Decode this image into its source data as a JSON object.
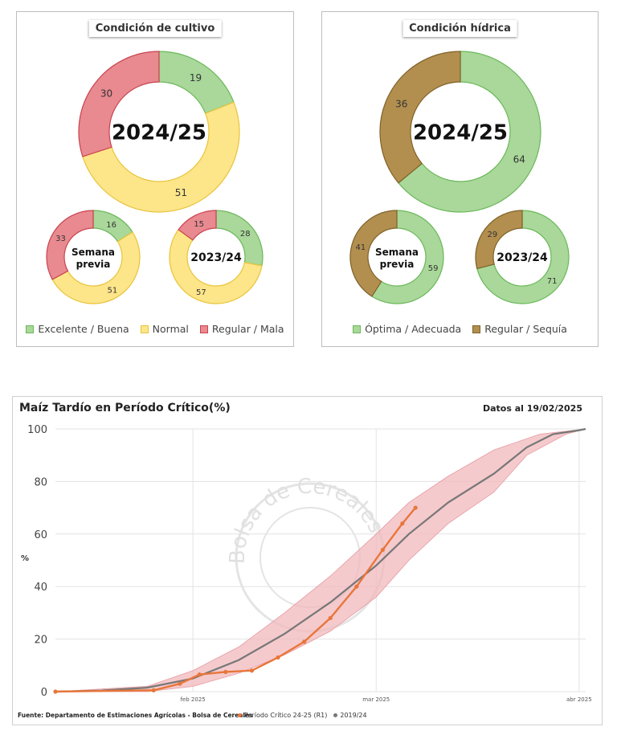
{
  "crop_panel": {
    "title": "Condición de cultivo",
    "colors": {
      "good": "#a9d89a",
      "normal": "#fde58a",
      "bad": "#e88a90",
      "good_stroke": "#6bb85a",
      "normal_stroke": "#e8c43a",
      "bad_stroke": "#c9434f"
    },
    "main": {
      "center_label": "2024/25",
      "values": {
        "good": 19,
        "normal": 51,
        "bad": 30
      }
    },
    "previous_week": {
      "center_label_line1": "Semana",
      "center_label_line2": "previa",
      "values": {
        "good": 16,
        "normal": 51,
        "bad": 33
      }
    },
    "last_year": {
      "center_label": "2023/24",
      "values": {
        "good": 28,
        "normal": 57,
        "bad": 15
      }
    },
    "legend": [
      "Excelente / Buena",
      "Normal",
      "Regular / Mala"
    ]
  },
  "water_panel": {
    "title": "Condición hídrica",
    "colors": {
      "good": "#a9d89a",
      "bad": "#b38f4f",
      "good_stroke": "#6bb85a",
      "bad_stroke": "#7e6228"
    },
    "main": {
      "center_label": "2024/25",
      "values": {
        "good": 64,
        "bad": 36
      }
    },
    "previous_week": {
      "center_label_line1": "Semana",
      "center_label_line2": "previa",
      "values": {
        "good": 59,
        "bad": 41
      }
    },
    "last_year": {
      "center_label": "2023/24",
      "values": {
        "good": 71,
        "bad": 29
      }
    },
    "legend": [
      "Óptima / Adecuada",
      "Regular / Sequía"
    ]
  },
  "chart_data": {
    "type": "line",
    "title": "Maíz Tardío en Período Crítico(%)",
    "date_note": "Datos al 19/02/2025",
    "ylabel": "%",
    "ylim": [
      0,
      100
    ],
    "yticks": [
      0,
      20,
      40,
      60,
      80,
      100
    ],
    "xlim": [
      "2025-01-11",
      "2025-04-02"
    ],
    "xticks": [
      {
        "date": "2025-02-01",
        "label": "feb 2025"
      },
      {
        "date": "2025-03-01",
        "label": "mar 2025"
      },
      {
        "date": "2025-04-01",
        "label": "abr 2025"
      }
    ],
    "grid": true,
    "source": "Fuente: Departamento de Estimaciones Agrícolas - Bolsa de Cereales",
    "watermark": "Bolsa de Cereales",
    "series": [
      {
        "name": "Período Crítico 24-25 (R1)",
        "color": "#e8763a",
        "points": [
          [
            "2025-01-11",
            0
          ],
          [
            "2025-01-26",
            0.5
          ],
          [
            "2025-01-30",
            3
          ],
          [
            "2025-02-02",
            6.5
          ],
          [
            "2025-02-06",
            7.5
          ],
          [
            "2025-02-10",
            8
          ],
          [
            "2025-02-14",
            13
          ],
          [
            "2025-02-18",
            19
          ],
          [
            "2025-02-22",
            28
          ],
          [
            "2025-02-26",
            40
          ],
          [
            "2025-03-02",
            54
          ],
          [
            "2025-03-05",
            64
          ],
          [
            "2025-03-07",
            70
          ]
        ]
      },
      {
        "name": "2019/24",
        "color": "#777777",
        "points": [
          [
            "2025-01-11",
            0
          ],
          [
            "2025-01-18",
            0.4
          ],
          [
            "2025-01-25",
            1.5
          ],
          [
            "2025-02-01",
            5
          ],
          [
            "2025-02-08",
            12
          ],
          [
            "2025-02-15",
            22
          ],
          [
            "2025-02-22",
            34
          ],
          [
            "2025-03-01",
            48
          ],
          [
            "2025-03-06",
            60
          ],
          [
            "2025-03-12",
            72
          ],
          [
            "2025-03-19",
            83
          ],
          [
            "2025-03-24",
            93
          ],
          [
            "2025-03-28",
            98
          ],
          [
            "2025-04-01",
            99.5
          ],
          [
            "2025-04-02",
            100
          ]
        ]
      },
      {
        "name": "range",
        "color": "#f2b8bc",
        "upper": [
          [
            "2025-01-11",
            0
          ],
          [
            "2025-01-25",
            2
          ],
          [
            "2025-02-01",
            8
          ],
          [
            "2025-02-08",
            17
          ],
          [
            "2025-02-15",
            30
          ],
          [
            "2025-02-22",
            44
          ],
          [
            "2025-03-01",
            60
          ],
          [
            "2025-03-06",
            72
          ],
          [
            "2025-03-12",
            82
          ],
          [
            "2025-03-19",
            92
          ],
          [
            "2025-03-26",
            98
          ],
          [
            "2025-04-02",
            100
          ]
        ],
        "lower": [
          [
            "2025-01-11",
            0
          ],
          [
            "2025-01-25",
            0
          ],
          [
            "2025-02-01",
            2
          ],
          [
            "2025-02-08",
            7
          ],
          [
            "2025-02-15",
            14
          ],
          [
            "2025-02-22",
            23
          ],
          [
            "2025-03-01",
            36
          ],
          [
            "2025-03-06",
            50
          ],
          [
            "2025-03-12",
            64
          ],
          [
            "2025-03-19",
            76
          ],
          [
            "2025-03-24",
            90
          ],
          [
            "2025-03-30",
            98
          ],
          [
            "2025-04-02",
            100
          ]
        ]
      }
    ]
  }
}
